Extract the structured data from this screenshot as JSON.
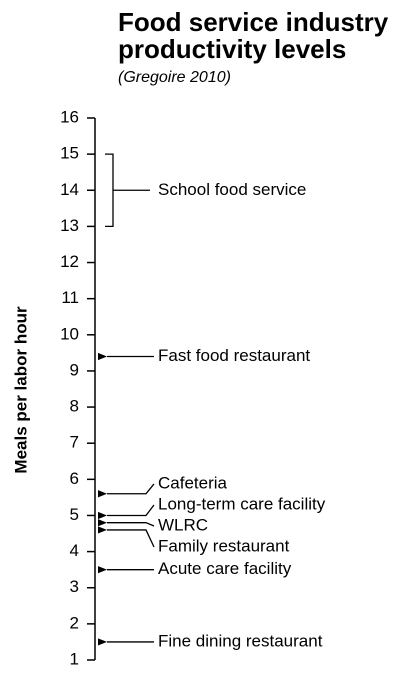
{
  "chart_data": {
    "type": "scale",
    "title": [
      "Food service industry",
      "productivity levels"
    ],
    "subtitle": "(Gregoire 2010)",
    "y_label": "Meals per labor hour",
    "ylim": [
      1,
      16
    ],
    "yticks": [
      1,
      2,
      3,
      4,
      5,
      6,
      7,
      8,
      9,
      10,
      11,
      12,
      13,
      14,
      15,
      16
    ],
    "ranges": [
      {
        "label": "School food service",
        "low": 13,
        "high": 15
      }
    ],
    "categories": [
      "Fast food restaurant",
      "Cafeteria",
      "Long-term care facility",
      "WLRC",
      "Family restaurant",
      "Acute care facility",
      "Fine dining restaurant"
    ],
    "values": [
      9.4,
      5.6,
      5.0,
      4.8,
      4.6,
      3.5,
      1.5
    ],
    "color": "#000000"
  }
}
